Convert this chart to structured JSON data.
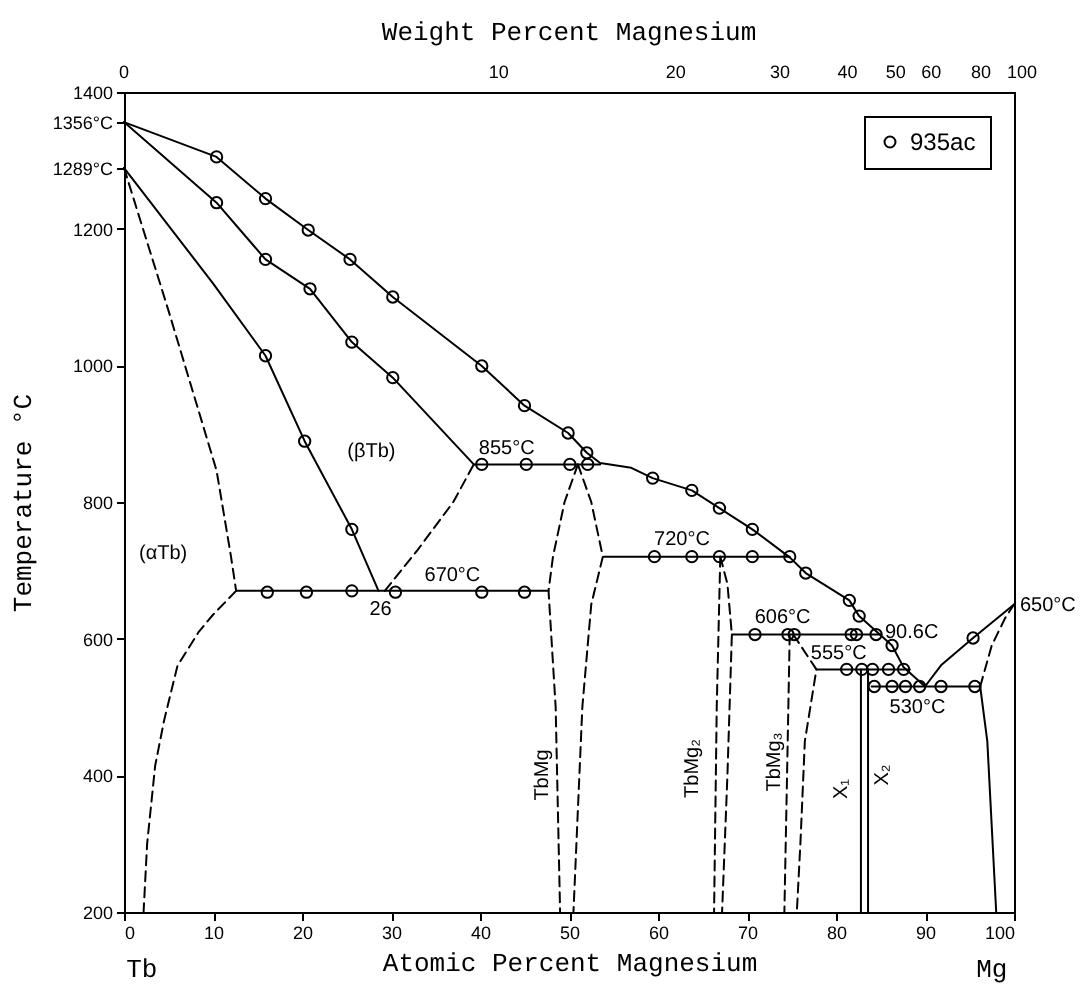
{
  "chart_data": {
    "type": "line",
    "xlabel": "Atomic Percent Magnesium",
    "x2label": "Weight Percent Magnesium",
    "ylabel": "Temperature °C",
    "xlim": [
      0,
      100
    ],
    "xticks": [
      0,
      10,
      20,
      30,
      40,
      50,
      60,
      70,
      80,
      90,
      100
    ],
    "ylim": [
      200,
      1400
    ],
    "yticks": [
      200,
      400,
      600,
      800,
      1000,
      1200,
      1400,
      {
        "value": 1356,
        "label": "1356°C"
      },
      {
        "value": 1289,
        "label": "1289°C"
      }
    ],
    "legend": "top right",
    "series": [
      {
        "color": "#000000",
        "line_style": "solid",
        "x": [
          0,
          10.4,
          15.9,
          20.7,
          25.4,
          30.2,
          40.2,
          45,
          49.9,
          52,
          53.5,
          57,
          59.4,
          63.8,
          66.9,
          70.6,
          74.8,
          76.6,
          81.5,
          82.6,
          86.3,
          87.6,
          90,
          91.8,
          95.4,
          100
        ],
        "values": [
          1356,
          1305,
          1244,
          1198,
          1155,
          1100,
          999,
          941,
          901,
          872,
          857,
          850,
          835,
          817,
          791,
          760,
          719,
          696,
          656,
          633,
          590,
          558,
          530,
          561,
          601,
          650
        ]
      },
      {
        "color": "#000000",
        "line_style": "solid",
        "x": [
          0,
          10.4,
          15.9,
          20.9,
          25.6,
          30.2,
          35,
          39.3
        ],
        "values": [
          1356,
          1238,
          1155,
          1112,
          1034,
          982,
          915,
          855
        ]
      },
      {
        "color": "#000000",
        "line_style": "solid",
        "x": [
          0,
          10,
          15.9,
          20.3,
          25.6,
          28.6
        ],
        "values": [
          1289,
          1120,
          1014,
          889,
          760,
          670
        ]
      },
      {
        "color": "#000000",
        "line_style": "dashed",
        "x": [
          0,
          5,
          10.4,
          12,
          12.6
        ],
        "values": [
          1289,
          1080,
          846,
          722,
          670
        ]
      },
      {
        "color": "#000000",
        "line_style": "dashed",
        "x": [
          12.6,
          10,
          8.4,
          6,
          4.5,
          3.5,
          2.6,
          2.2
        ],
        "values": [
          670,
          635,
          610,
          560,
          480,
          414,
          300,
          200
        ]
      },
      {
        "color": "#000000",
        "line_style": "dashed",
        "x": [
          29.3,
          33,
          37,
          39.3
        ],
        "values": [
          670,
          730,
          800,
          855
        ]
      },
      {
        "color": "#000000",
        "line_style": "dashed",
        "x": [
          51,
          49.5,
          48.2,
          47.7,
          48.5,
          49
        ],
        "values": [
          855,
          800,
          720,
          670,
          500,
          200
        ]
      },
      {
        "color": "#000000",
        "line_style": "dashed",
        "x": [
          51,
          52.5,
          53.8,
          52.5,
          51.5,
          50.5
        ],
        "values": [
          855,
          800,
          720,
          650,
          500,
          200
        ]
      },
      {
        "color": "#000000",
        "line_style": "solid",
        "x": [
          12.6,
          47.7
        ],
        "values": [
          670,
          670
        ]
      },
      {
        "color": "#000000",
        "line_style": "solid",
        "x": [
          39.3,
          53.5
        ],
        "values": [
          855,
          855
        ]
      },
      {
        "color": "#000000",
        "line_style": "solid",
        "x": [
          53.9,
          74.8
        ],
        "values": [
          720,
          720
        ]
      },
      {
        "color": "#000000",
        "line_style": "dashed",
        "x": [
          67,
          66.6,
          66.3
        ],
        "values": [
          720,
          500,
          200
        ]
      },
      {
        "color": "#000000",
        "line_style": "dashed",
        "x": [
          67,
          67.8,
          68.3,
          67.8,
          67.2
        ],
        "values": [
          720,
          680,
          606,
          400,
          200
        ]
      },
      {
        "color": "#000000",
        "line_style": "solid",
        "x": [
          68.3,
          85
        ],
        "values": [
          606,
          606
        ]
      },
      {
        "color": "#000000",
        "line_style": "dashed",
        "x": [
          74.8,
          74.5,
          74.2
        ],
        "values": [
          606,
          400,
          200
        ]
      },
      {
        "color": "#000000",
        "line_style": "dashed",
        "x": [
          75.2,
          77.8,
          76.5,
          76,
          75.6
        ],
        "values": [
          606,
          555,
          450,
          300,
          200
        ]
      },
      {
        "color": "#000000",
        "line_style": "solid",
        "x": [
          77.8,
          88.3
        ],
        "values": [
          555,
          555
        ]
      },
      {
        "color": "#000000",
        "line_style": "solid",
        "x": [
          82.8,
          82.8
        ],
        "values": [
          555,
          200
        ]
      },
      {
        "color": "#000000",
        "line_style": "solid",
        "x": [
          83.6,
          83.6
        ],
        "values": [
          555,
          200
        ]
      },
      {
        "color": "#000000",
        "line_style": "solid",
        "x": [
          84,
          96.2
        ],
        "values": [
          530,
          530
        ]
      },
      {
        "color": "#000000",
        "line_style": "solid",
        "x": [
          96.2,
          97,
          97.6,
          98
        ],
        "values": [
          530,
          450,
          300,
          200
        ]
      },
      {
        "color": "#000000",
        "line_style": "dashed",
        "x": [
          96.2,
          97.5,
          99,
          100
        ],
        "values": [
          530,
          590,
          630,
          650
        ]
      },
      {
        "type": "scatter",
        "name": "935ac",
        "color": "#000000",
        "marker": "circle",
        "x": [
          10.4,
          15.9,
          20.7,
          25.4,
          30.2,
          40.2,
          45,
          49.9,
          52,
          10.4,
          15.9,
          20.9,
          25.6,
          30.2,
          15.9,
          20.3,
          25.6,
          16.1,
          20.5,
          25.6,
          30.5,
          40.2,
          45,
          40.2,
          45.2,
          50.1,
          52.1,
          59.4,
          63.8,
          66.9,
          70.6,
          76.6,
          81.5,
          82.6,
          86.3,
          59.6,
          63.8,
          66.9,
          70.6,
          74.8,
          70.9,
          74.6,
          75.3,
          81.7,
          82.3,
          84.5,
          81.2,
          82.9,
          84.1,
          85.9,
          87.6,
          84.3,
          86.3,
          87.8,
          89.4,
          91.8,
          95.6,
          95.4
        ],
        "values": [
          1305,
          1244,
          1198,
          1155,
          1100,
          999,
          941,
          901,
          872,
          1238,
          1155,
          1112,
          1034,
          982,
          1014,
          889,
          760,
          668,
          668,
          670,
          668,
          668,
          668,
          855,
          855,
          855,
          855,
          835,
          817,
          791,
          760,
          696,
          656,
          633,
          590,
          720,
          720,
          720,
          720,
          720,
          606,
          606,
          606,
          606,
          606,
          606,
          555,
          555,
          555,
          555,
          555,
          530,
          530,
          530,
          530,
          530,
          530,
          601
        ]
      }
    ],
    "annotations": [
      "(αTb)",
      "(βTb)",
      {
        "text": "855°C",
        "x": 43,
        "y": 855
      },
      {
        "text": "670°C",
        "x": 36.9,
        "y": 670
      },
      {
        "text": "26",
        "x": 28.6,
        "y": 670
      },
      {
        "text": "720°C",
        "x": 62.7,
        "y": 720
      },
      {
        "text": "606°C",
        "x": 74,
        "y": 606
      },
      "90.6C",
      {
        "text": "555°C",
        "x": 80.3,
        "y": 555
      },
      {
        "text": "530°C",
        "x": 88.7,
        "y": 530
      },
      {
        "text": "650°C",
        "x": 100,
        "y": 650
      },
      "TbMg",
      "TbMg₂",
      "TbMg₃",
      "X₁",
      "X₂",
      "Tb",
      "Mg",
      "0",
      "10",
      "20",
      "30",
      "40",
      "50",
      "60",
      "80",
      "100"
    ]
  }
}
